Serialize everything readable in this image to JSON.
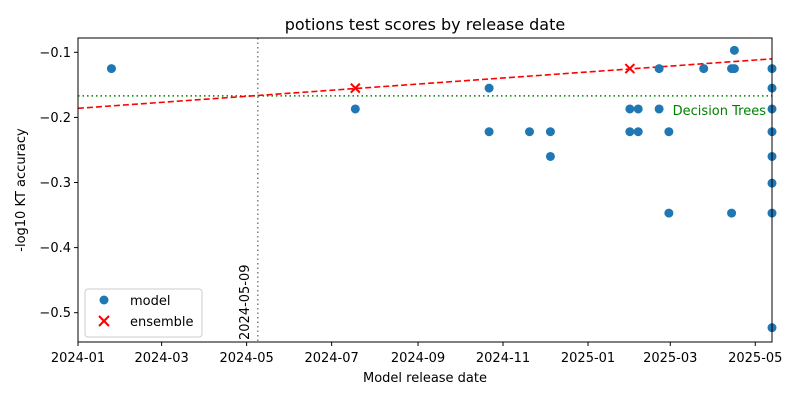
{
  "chart_data": {
    "type": "scatter",
    "title": "potions test scores by release date",
    "xlabel": "Model release date",
    "ylabel": "-log10 KT accuracy",
    "xlim": [
      "2024-01-01",
      "2025-05-13"
    ],
    "ylim": [
      -0.545,
      -0.078
    ],
    "x_ticks": [
      {
        "date": "2024-01-01",
        "label": "2024-01"
      },
      {
        "date": "2024-03-01",
        "label": "2024-03"
      },
      {
        "date": "2024-05-01",
        "label": "2024-05"
      },
      {
        "date": "2024-07-01",
        "label": "2024-07"
      },
      {
        "date": "2024-09-01",
        "label": "2024-09"
      },
      {
        "date": "2024-11-01",
        "label": "2024-11"
      },
      {
        "date": "2025-01-01",
        "label": "2025-01"
      },
      {
        "date": "2025-03-01",
        "label": "2025-03"
      },
      {
        "date": "2025-05-01",
        "label": "2025-05"
      }
    ],
    "y_ticks": [
      -0.1,
      -0.2,
      -0.3,
      -0.4,
      -0.5
    ],
    "y_tick_labels": [
      "−0.1",
      "−0.2",
      "−0.3",
      "−0.4",
      "−0.5"
    ],
    "series": [
      {
        "name": "model",
        "marker": "circle",
        "color": "#1f77b4",
        "points": [
          {
            "date": "2024-01-25",
            "y": -0.125
          },
          {
            "date": "2024-07-18",
            "y": -0.187
          },
          {
            "date": "2024-10-22",
            "y": -0.155
          },
          {
            "date": "2024-10-22",
            "y": -0.222
          },
          {
            "date": "2024-11-20",
            "y": -0.222
          },
          {
            "date": "2024-12-05",
            "y": -0.222
          },
          {
            "date": "2024-12-05",
            "y": -0.26
          },
          {
            "date": "2025-01-31",
            "y": -0.187
          },
          {
            "date": "2025-01-31",
            "y": -0.222
          },
          {
            "date": "2025-02-06",
            "y": -0.187
          },
          {
            "date": "2025-02-06",
            "y": -0.222
          },
          {
            "date": "2025-02-21",
            "y": -0.125
          },
          {
            "date": "2025-02-21",
            "y": -0.187
          },
          {
            "date": "2025-02-28",
            "y": -0.222
          },
          {
            "date": "2025-02-28",
            "y": -0.347
          },
          {
            "date": "2025-03-25",
            "y": -0.125
          },
          {
            "date": "2025-04-14",
            "y": -0.125
          },
          {
            "date": "2025-04-14",
            "y": -0.347
          },
          {
            "date": "2025-04-16",
            "y": -0.097
          },
          {
            "date": "2025-04-16",
            "y": -0.125
          },
          {
            "date": "2025-05-13",
            "y": -0.125
          },
          {
            "date": "2025-05-13",
            "y": -0.155
          },
          {
            "date": "2025-05-13",
            "y": -0.187
          },
          {
            "date": "2025-05-13",
            "y": -0.222
          },
          {
            "date": "2025-05-13",
            "y": -0.26
          },
          {
            "date": "2025-05-13",
            "y": -0.301
          },
          {
            "date": "2025-05-13",
            "y": -0.347
          },
          {
            "date": "2025-05-13",
            "y": -0.523
          }
        ]
      },
      {
        "name": "ensemble",
        "marker": "x",
        "color": "#ff0000",
        "points": [
          {
            "date": "2024-07-18",
            "y": -0.155
          },
          {
            "date": "2025-01-31",
            "y": -0.125
          }
        ]
      }
    ],
    "trend_line": {
      "color": "#ff0000",
      "style": "dashed",
      "start": {
        "date": "2024-01-01",
        "y": -0.186
      },
      "end": {
        "date": "2025-05-13",
        "y": -0.11
      }
    },
    "reference_hline": {
      "y": -0.167,
      "color": "#008000",
      "style": "dotted",
      "label": "Decision Trees"
    },
    "reference_vline": {
      "date": "2024-05-09",
      "color": "#808080",
      "style": "dotted",
      "label": "2024-05-09"
    },
    "legend": {
      "position": "bottom-left",
      "entries": [
        "model",
        "ensemble"
      ]
    },
    "grid": false
  }
}
